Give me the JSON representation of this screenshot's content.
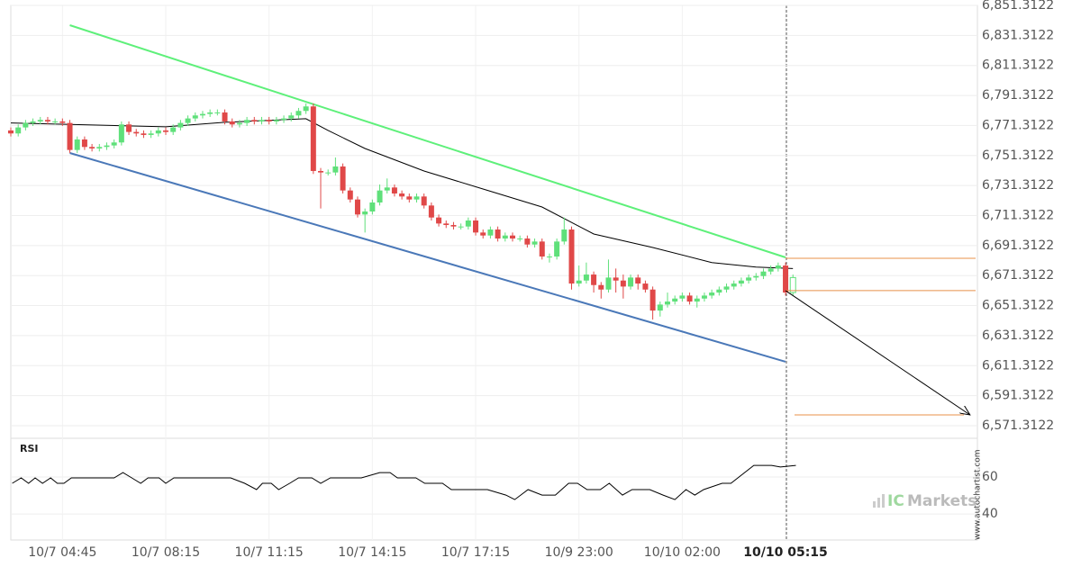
{
  "chart_data": [
    {
      "type": "candlestick",
      "xlim": [
        0,
        131
      ],
      "ylim": [
        6562.9,
        6851.3122
      ],
      "grid": true,
      "yticks": [
        {
          "value": 6571.3122,
          "label": "6,571.3122"
        },
        {
          "value": 6591.3122,
          "label": "6,591.3122"
        },
        {
          "value": 6611.3122,
          "label": "6,611.3122"
        },
        {
          "value": 6631.3122,
          "label": "6,631.3122"
        },
        {
          "value": 6651.3122,
          "label": "6,651.3122"
        },
        {
          "value": 6671.3122,
          "label": "6,671.3122"
        },
        {
          "value": 6691.3122,
          "label": "6,691.3122"
        },
        {
          "value": 6711.3122,
          "label": "6,711.3122"
        },
        {
          "value": 6731.3122,
          "label": "6,731.3122"
        },
        {
          "value": 6751.3122,
          "label": "6,751.3122"
        },
        {
          "value": 6771.3122,
          "label": "6,771.3122"
        },
        {
          "value": 6791.3122,
          "label": "6,791.3122"
        },
        {
          "value": 6811.3122,
          "label": "6,811.3122"
        },
        {
          "value": 6831.3122,
          "label": "6,831.3122"
        },
        {
          "value": 6851.3122,
          "label": "6,851.3122"
        }
      ],
      "up_color": "#5fe07a",
      "down_color": "#e04848",
      "candles": {
        "x": [
          0,
          1,
          2,
          3,
          4,
          5,
          6,
          7,
          8,
          9,
          10,
          11,
          12,
          13,
          14,
          15,
          16,
          17,
          18,
          19,
          20,
          21,
          22,
          23,
          24,
          25,
          26,
          27,
          28,
          29,
          30,
          31,
          32,
          33,
          34,
          35,
          36,
          37,
          38,
          39,
          40,
          41,
          42,
          43,
          44,
          45,
          46,
          47,
          48,
          49,
          50,
          51,
          52,
          53,
          54,
          55,
          56,
          57,
          58,
          59,
          60,
          61,
          62,
          63,
          64,
          65,
          66,
          67,
          68,
          69,
          70,
          71,
          72,
          73,
          74,
          75,
          76,
          77,
          78,
          79,
          80,
          81,
          82,
          83,
          84,
          85,
          86,
          87,
          88,
          89,
          90,
          91,
          92,
          93,
          94,
          95,
          96,
          97,
          98,
          99,
          100,
          101,
          102,
          103,
          104,
          105,
          106
        ],
        "open": [
          6768,
          6766,
          6770,
          6773,
          6774,
          6775,
          6774,
          6774,
          6773,
          6755,
          6762,
          6757,
          6756,
          6757,
          6758,
          6760,
          6772,
          6767,
          6766,
          6765,
          6766,
          6768,
          6767,
          6770,
          6773,
          6776,
          6778,
          6779,
          6780,
          6780,
          6774,
          6772,
          6773,
          6775,
          6774,
          6775,
          6774,
          6775,
          6776,
          6778,
          6781,
          6784,
          6741,
          6740,
          6740,
          6744,
          6728,
          6722,
          6712,
          6714,
          6720,
          6728,
          6730,
          6726,
          6724,
          6722,
          6724,
          6718,
          6710,
          6706,
          6705,
          6704,
          6704,
          6708,
          6700,
          6698,
          6702,
          6696,
          6698,
          6696,
          6696,
          6692,
          6694,
          6684,
          6684,
          6694,
          6702,
          6666,
          6668,
          6672,
          6665,
          6662,
          6670,
          6668,
          6664,
          6670,
          6666,
          6662,
          6648,
          6652,
          6654,
          6656,
          6658,
          6654,
          6656,
          6658,
          6660,
          6662,
          6664,
          6666,
          6668,
          6670,
          6671,
          6674,
          6676,
          6678,
          6660
        ],
        "high": [
          6770,
          6772,
          6775,
          6776,
          6777,
          6777,
          6776,
          6776,
          6775,
          6764,
          6764,
          6759,
          6759,
          6760,
          6762,
          6774,
          6774,
          6769,
          6768,
          6768,
          6770,
          6770,
          6772,
          6775,
          6778,
          6780,
          6781,
          6782,
          6782,
          6782,
          6776,
          6775,
          6777,
          6777,
          6777,
          6777,
          6777,
          6778,
          6780,
          6783,
          6786,
          6786,
          6743,
          6742,
          6750,
          6746,
          6730,
          6724,
          6716,
          6722,
          6732,
          6736,
          6732,
          6728,
          6726,
          6726,
          6726,
          6720,
          6712,
          6708,
          6707,
          6706,
          6710,
          6710,
          6702,
          6704,
          6704,
          6700,
          6700,
          6698,
          6698,
          6696,
          6696,
          6686,
          6696,
          6710,
          6704,
          6678,
          6680,
          6674,
          6667,
          6682,
          6676,
          6672,
          6672,
          6672,
          6668,
          6664,
          6654,
          6660,
          6658,
          6660,
          6660,
          6658,
          6660,
          6662,
          6664,
          6666,
          6668,
          6670,
          6672,
          6673,
          6676,
          6678,
          6680,
          6680,
          6672
        ],
        "low": [
          6764,
          6764,
          6768,
          6771,
          6772,
          6772,
          6772,
          6771,
          6753,
          6753,
          6755,
          6754,
          6754,
          6755,
          6756,
          6758,
          6765,
          6764,
          6763,
          6763,
          6764,
          6765,
          6765,
          6768,
          6771,
          6774,
          6776,
          6777,
          6778,
          6772,
          6770,
          6770,
          6771,
          6772,
          6772,
          6772,
          6772,
          6773,
          6774,
          6776,
          6779,
          6739,
          6716,
          6738,
          6738,
          6726,
          6720,
          6710,
          6700,
          6712,
          6718,
          6726,
          6724,
          6722,
          6720,
          6720,
          6716,
          6708,
          6704,
          6703,
          6702,
          6702,
          6702,
          6698,
          6696,
          6696,
          6694,
          6694,
          6694,
          6694,
          6690,
          6690,
          6682,
          6680,
          6682,
          6692,
          6662,
          6664,
          6666,
          6660,
          6656,
          6660,
          6660,
          6656,
          6662,
          6662,
          6660,
          6642,
          6644,
          6650,
          6652,
          6654,
          6652,
          6650,
          6654,
          6656,
          6658,
          6660,
          6662,
          6664,
          6666,
          6668,
          6669,
          6672,
          6674,
          6658,
          6658
        ],
        "close": [
          6766,
          6770,
          6773,
          6774,
          6775,
          6774,
          6774,
          6773,
          6755,
          6762,
          6757,
          6756,
          6757,
          6758,
          6760,
          6772,
          6767,
          6766,
          6765,
          6766,
          6768,
          6767,
          6770,
          6773,
          6776,
          6778,
          6779,
          6780,
          6780,
          6774,
          6772,
          6773,
          6775,
          6774,
          6775,
          6774,
          6775,
          6776,
          6778,
          6781,
          6784,
          6741,
          6740,
          6740,
          6744,
          6728,
          6722,
          6712,
          6714,
          6720,
          6728,
          6730,
          6726,
          6724,
          6722,
          6724,
          6718,
          6710,
          6706,
          6705,
          6704,
          6704,
          6708,
          6700,
          6698,
          6702,
          6696,
          6698,
          6696,
          6696,
          6692,
          6694,
          6684,
          6684,
          6694,
          6702,
          6666,
          6668,
          6672,
          6665,
          6662,
          6670,
          6668,
          6664,
          6670,
          6666,
          6662,
          6648,
          6652,
          6654,
          6656,
          6658,
          6654,
          6656,
          6658,
          6660,
          6662,
          6664,
          6666,
          6668,
          6670,
          6671,
          6674,
          6676,
          6678,
          6660,
          6670
        ]
      },
      "lines": [
        {
          "color": "#000000",
          "x": [
            0,
            21,
            29,
            40,
            43,
            48,
            56,
            64,
            72,
            79,
            87,
            95,
            101,
            106
          ],
          "values": [
            6773,
            6770.4,
            6773.4,
            6775.8,
            6768,
            6756,
            6741,
            6729,
            6717,
            6699,
            6690,
            6680,
            6677,
            6676
          ]
        },
        {
          "color": "#5ef07a",
          "x": [
            8,
            105
          ],
          "values": [
            6838.1,
            6683.4
          ]
        },
        {
          "color": "#4a78b8",
          "x": [
            8,
            105
          ],
          "values": [
            6753.0,
            6613.9
          ]
        }
      ],
      "projection": {
        "color": "#000000",
        "x": [
          105,
          130
        ],
        "values": [
          6661.3,
          6578.5
        ]
      },
      "levels": {
        "color": "#e8904a",
        "values": [
          6682.8,
          6661.3,
          6578.5
        ]
      }
    },
    {
      "type": "line",
      "title": "RSI",
      "xlim": [
        0,
        131
      ],
      "ylim": [
        25.9,
        79.5
      ],
      "yticks": [
        40,
        60
      ],
      "grid": true,
      "xticks": [
        {
          "value": 7,
          "label": "10/7 04:45"
        },
        {
          "value": 21,
          "label": "10/7 08:15"
        },
        {
          "value": 35,
          "label": "10/7 11:15"
        },
        {
          "value": 49,
          "label": "10/7 14:15"
        },
        {
          "value": 63,
          "label": "10/7 17:15"
        },
        {
          "value": 77,
          "label": "10/9 23:00"
        },
        {
          "value": 91,
          "label": "10/10 02:00"
        },
        {
          "value": 105,
          "label": "10/10 05:15"
        }
      ],
      "series": [
        {
          "color": "#000000",
          "x": [
            0.2,
            1.4,
            2.4,
            3.3,
            4.3,
            5.4,
            6.3,
            7.2,
            8.2,
            9.4,
            14.0,
            15.2,
            16.4,
            17.6,
            18.6,
            20.1,
            21.0,
            22.1,
            29.8,
            31.7,
            33.3,
            34.1,
            35.3,
            36.3,
            37.8,
            39.0,
            40.8,
            42.0,
            43.3,
            47.5,
            50.0,
            51.4,
            52.4,
            54.9,
            56.1,
            58.5,
            59.7,
            64.6,
            67.1,
            68.3,
            70.1,
            72.0,
            73.8,
            75.6,
            76.8,
            78.1,
            79.9,
            81.1,
            82.9,
            84.2,
            86.6,
            88.4,
            90.0,
            91.5,
            92.7,
            93.9,
            96.4,
            97.6,
            100.7,
            103.1,
            104.3,
            106.4
          ],
          "values": [
            56.6,
            59.5,
            56.6,
            59.5,
            56.6,
            59.5,
            56.6,
            56.6,
            59.5,
            59.5,
            59.5,
            62.4,
            59.5,
            56.6,
            59.5,
            59.5,
            56.6,
            59.5,
            59.5,
            56.6,
            53.2,
            56.6,
            56.6,
            53.2,
            56.6,
            59.5,
            59.5,
            56.6,
            59.5,
            59.5,
            62.4,
            62.4,
            59.5,
            59.5,
            56.6,
            56.6,
            53.2,
            53.2,
            50.2,
            47.8,
            53.2,
            50.2,
            50.2,
            56.6,
            56.6,
            53.2,
            53.2,
            56.6,
            50.2,
            53.2,
            53.2,
            50.2,
            47.8,
            53.2,
            50.2,
            53.2,
            56.6,
            56.6,
            66.3,
            66.3,
            65.4,
            66.3
          ]
        }
      ]
    }
  ],
  "watermark": "www.autochartist.com",
  "logo": {
    "brand": "IC",
    "name": "Markets"
  }
}
